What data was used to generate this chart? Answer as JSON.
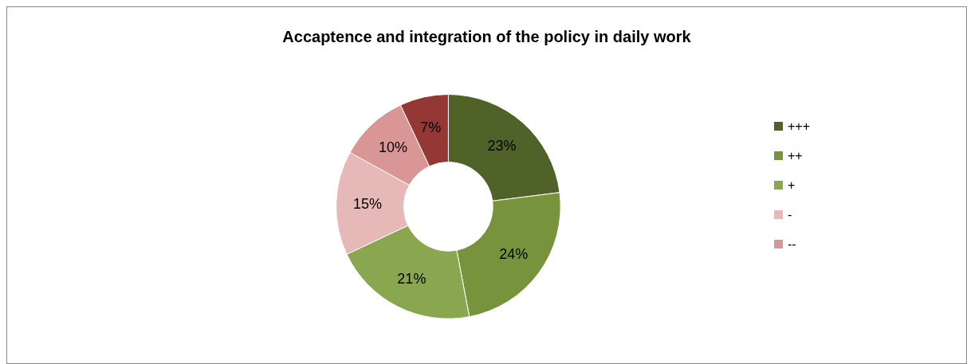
{
  "chart_data": {
    "type": "donut",
    "title": "Accaptence and integration of the policy in daily work",
    "categories": [
      "+++",
      "++",
      "+",
      "-",
      "--",
      null
    ],
    "values": [
      23,
      24,
      21,
      15,
      10,
      7
    ],
    "colors": [
      "#4f6228",
      "#77933c",
      "#8aa64e",
      "#e6b9b8",
      "#d99694",
      "#953735"
    ],
    "value_labels": [
      "23%",
      "24%",
      "21%",
      "15%",
      "10%",
      "7%"
    ],
    "legend": "right"
  }
}
